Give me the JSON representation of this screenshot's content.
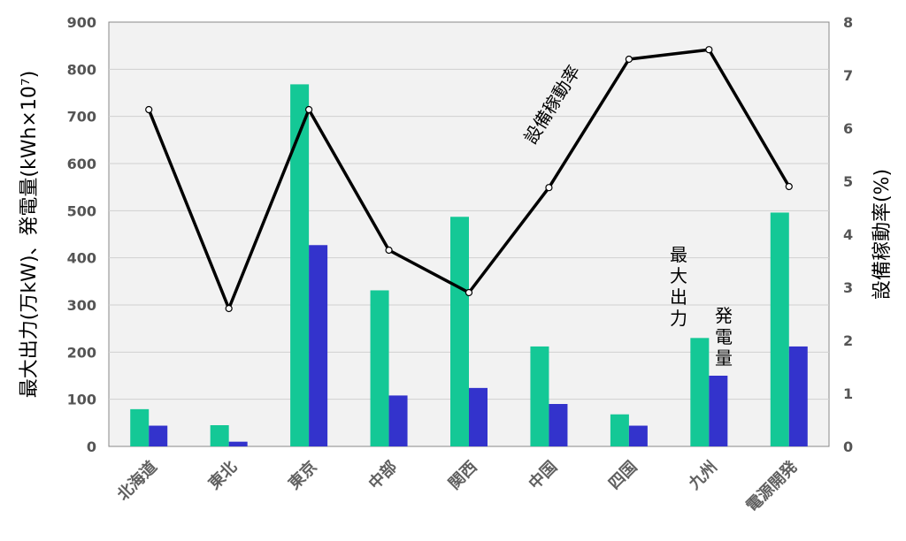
{
  "chart_data": {
    "type": "bar",
    "categories": [
      "北海道",
      "東北",
      "東京",
      "中部",
      "関西",
      "中国",
      "四国",
      "九州",
      "電源開発"
    ],
    "series": [
      {
        "name": "最大出力",
        "axis": "left",
        "color": "#14c896",
        "values": [
          79,
          45,
          768,
          331,
          487,
          212,
          68,
          230,
          496
        ]
      },
      {
        "name": "発電量",
        "axis": "left",
        "color": "#3333cc",
        "values": [
          44,
          10,
          427,
          108,
          124,
          90,
          44,
          150,
          212
        ]
      },
      {
        "name": "設備稼動率",
        "axis": "right",
        "type": "line",
        "color": "#000000",
        "values": [
          6.35,
          2.6,
          6.35,
          3.7,
          2.9,
          4.88,
          7.3,
          7.48,
          4.9
        ]
      }
    ],
    "ylabel": "最大出力(万kW)、発電量(kWh×10⁷)",
    "y2label": "設備稼動率(%)",
    "ylim": [
      0,
      900
    ],
    "y2lim": [
      0,
      8
    ],
    "yticks": [
      "0",
      "100",
      "200",
      "300",
      "400",
      "500",
      "600",
      "700",
      "800",
      "900"
    ],
    "y2ticks": [
      "0",
      "1",
      "2",
      "3",
      "4",
      "5",
      "6",
      "7",
      "8"
    ],
    "annotations": [
      "設備稼動率",
      "最大出力",
      "発電量"
    ],
    "grid": true,
    "background": "#f2f2f2",
    "gridColor": "#d0d0d0"
  }
}
